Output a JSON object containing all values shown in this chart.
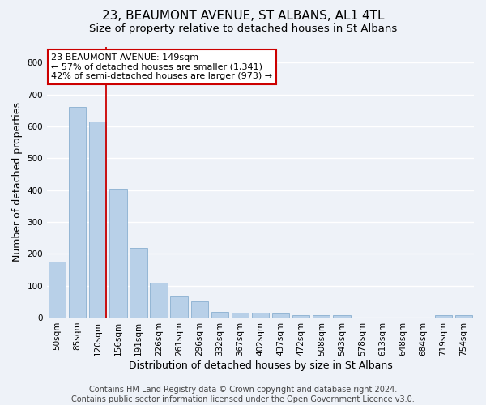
{
  "title": "23, BEAUMONT AVENUE, ST ALBANS, AL1 4TL",
  "subtitle": "Size of property relative to detached houses in St Albans",
  "xlabel": "Distribution of detached houses by size in St Albans",
  "ylabel": "Number of detached properties",
  "footer_line1": "Contains HM Land Registry data © Crown copyright and database right 2024.",
  "footer_line2": "Contains public sector information licensed under the Open Government Licence v3.0.",
  "bar_color": "#b8d0e8",
  "bar_edgecolor": "#8ab0d0",
  "vline_color": "#cc0000",
  "vline_x_index": 2,
  "annotation_line1": "23 BEAUMONT AVENUE: 149sqm",
  "annotation_line2": "← 57% of detached houses are smaller (1,341)",
  "annotation_line3": "42% of semi-detached houses are larger (973) →",
  "annotation_box_color": "#ffffff",
  "annotation_box_edgecolor": "#cc0000",
  "categories": [
    "50sqm",
    "85sqm",
    "120sqm",
    "156sqm",
    "191sqm",
    "226sqm",
    "261sqm",
    "296sqm",
    "332sqm",
    "367sqm",
    "402sqm",
    "437sqm",
    "472sqm",
    "508sqm",
    "543sqm",
    "578sqm",
    "613sqm",
    "648sqm",
    "684sqm",
    "719sqm",
    "754sqm"
  ],
  "values": [
    175,
    660,
    615,
    405,
    218,
    110,
    65,
    50,
    18,
    15,
    15,
    12,
    8,
    7,
    7,
    0,
    0,
    0,
    0,
    8,
    7
  ],
  "ylim": [
    0,
    850
  ],
  "yticks": [
    0,
    100,
    200,
    300,
    400,
    500,
    600,
    700,
    800
  ],
  "background_color": "#eef2f8",
  "grid_color": "#ffffff",
  "title_fontsize": 11,
  "subtitle_fontsize": 9.5,
  "tick_fontsize": 7.5,
  "ylabel_fontsize": 9,
  "xlabel_fontsize": 9,
  "footer_fontsize": 7,
  "annotation_fontsize": 8
}
